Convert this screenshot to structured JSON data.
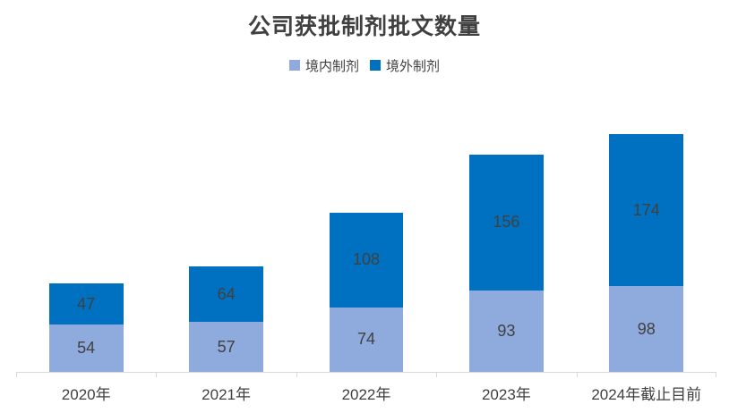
{
  "chart_data": {
    "type": "bar",
    "stacked": true,
    "title": "公司获批制剂批文数量",
    "categories": [
      "2020年",
      "2021年",
      "2022年",
      "2023年",
      "2024年截止目前"
    ],
    "series": [
      {
        "name": "境内制剂",
        "color": "#8FAADC",
        "values": [
          54,
          57,
          74,
          93,
          98
        ]
      },
      {
        "name": "境外制剂",
        "color": "#0070C0",
        "values": [
          47,
          64,
          108,
          156,
          174
        ]
      }
    ],
    "ylim": [
      0,
      272
    ],
    "legend_position": "top",
    "data_labels": true,
    "label_color": "#404040",
    "axis_line_color": "#D9D9D9",
    "grid": false
  }
}
